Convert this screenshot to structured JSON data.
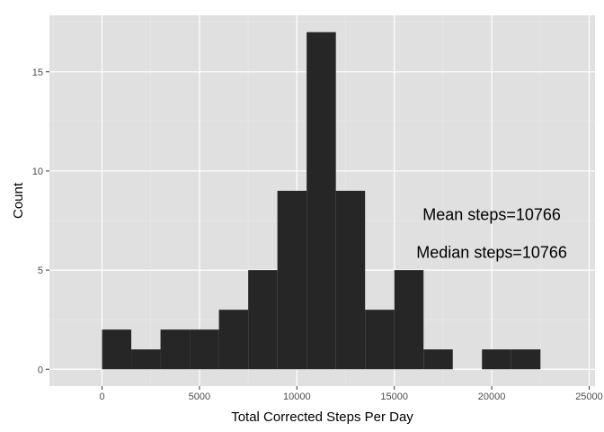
{
  "chart_data": {
    "type": "bar",
    "subtype": "histogram",
    "title": "",
    "xlabel": "Total Corrected Steps Per Day",
    "ylabel": "Count",
    "xlim": [
      -2700,
      25300
    ],
    "ylim": [
      -0.85,
      17.85
    ],
    "x_ticks": [
      0,
      5000,
      10000,
      15000,
      20000,
      25000
    ],
    "x_tick_labels": [
      "0",
      "5000",
      "10000",
      "15000",
      "20000",
      "25000"
    ],
    "y_ticks": [
      0,
      5,
      10,
      15
    ],
    "y_tick_labels": [
      "0",
      "5",
      "10",
      "15"
    ],
    "bin_width": 1500,
    "bins": [
      {
        "x0": 0,
        "x1": 1500,
        "count": 2
      },
      {
        "x0": 1500,
        "x1": 3000,
        "count": 1
      },
      {
        "x0": 3000,
        "x1": 4500,
        "count": 2
      },
      {
        "x0": 4500,
        "x1": 6000,
        "count": 2
      },
      {
        "x0": 6000,
        "x1": 7500,
        "count": 3
      },
      {
        "x0": 7500,
        "x1": 9000,
        "count": 5
      },
      {
        "x0": 9000,
        "x1": 10500,
        "count": 9
      },
      {
        "x0": 10500,
        "x1": 12000,
        "count": 17
      },
      {
        "x0": 12000,
        "x1": 13500,
        "count": 9
      },
      {
        "x0": 13500,
        "x1": 15000,
        "count": 3
      },
      {
        "x0": 15000,
        "x1": 16500,
        "count": 5
      },
      {
        "x0": 16500,
        "x1": 18000,
        "count": 1
      },
      {
        "x0": 18000,
        "x1": 19500,
        "count": 0
      },
      {
        "x0": 19500,
        "x1": 21000,
        "count": 1
      },
      {
        "x0": 21000,
        "x1": 22500,
        "count": 1
      }
    ],
    "annotations": [
      {
        "name": "annotation-mean",
        "text": "Mean steps=10766",
        "x": 20000,
        "y": 7.8
      },
      {
        "name": "annotation-median",
        "text": "Median steps=10766",
        "x": 20000,
        "y": 5.9
      }
    ],
    "grid": true,
    "colors": {
      "panel_background": "#e0e0e0",
      "grid_major": "#ffffff",
      "grid_minor": "#ebebeb",
      "bar_fill": "#262626",
      "tick_label": "#4d4d4d"
    }
  }
}
